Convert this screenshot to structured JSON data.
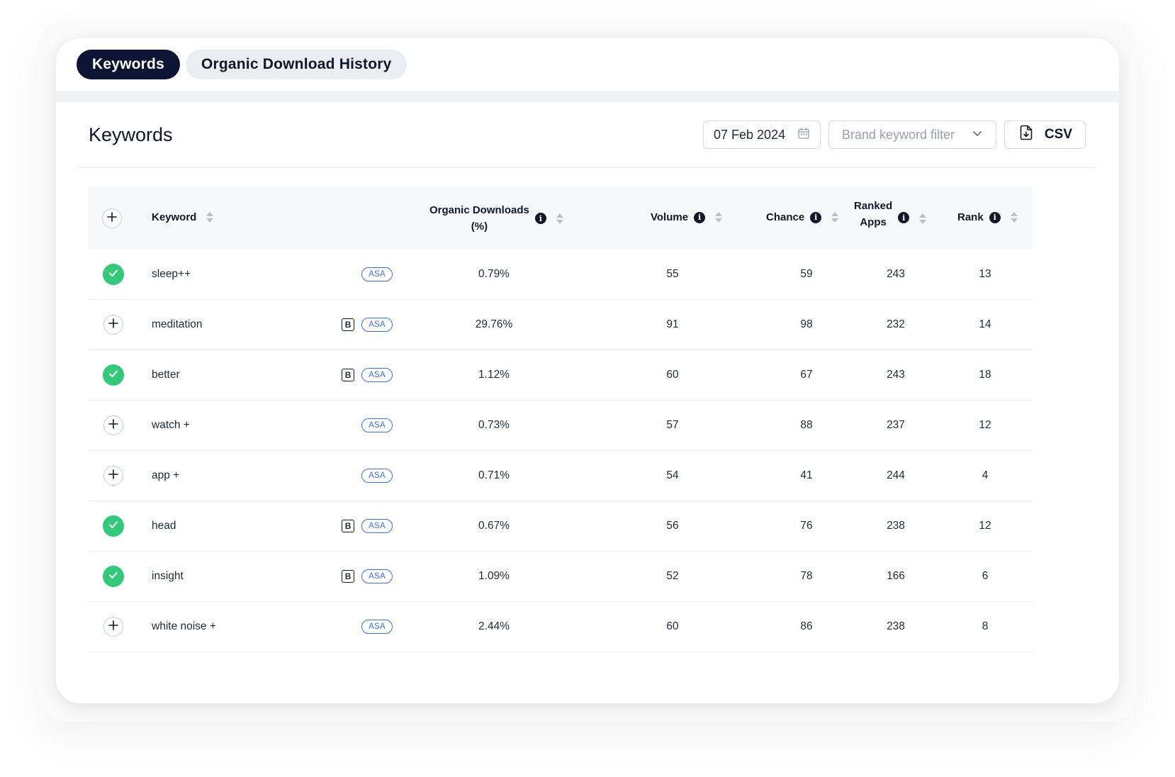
{
  "tabs": [
    {
      "label": "Keywords",
      "active": true
    },
    {
      "label": "Organic Download History",
      "active": false
    }
  ],
  "section": {
    "title": "Keywords"
  },
  "toolbar": {
    "date": "07 Feb 2024",
    "brand_filter_placeholder": "Brand keyword filter",
    "csv_label": "CSV"
  },
  "table": {
    "headers": {
      "keyword": "Keyword",
      "organic_line1": "Organic Downloads",
      "organic_line2": "(%)",
      "volume": "Volume",
      "chance": "Chance",
      "ranked_line1": "Ranked",
      "ranked_line2": "Apps",
      "rank": "Rank"
    },
    "badges": {
      "brand": "B",
      "asa": "ASA"
    },
    "rows": [
      {
        "keyword": "sleep++",
        "added": true,
        "brand": false,
        "organic": "0.79%",
        "volume": "55",
        "chance": "59",
        "ranked_apps": "243",
        "rank": "13"
      },
      {
        "keyword": "meditation",
        "added": false,
        "brand": true,
        "organic": "29.76%",
        "volume": "91",
        "chance": "98",
        "ranked_apps": "232",
        "rank": "14"
      },
      {
        "keyword": "better",
        "added": true,
        "brand": true,
        "organic": "1.12%",
        "volume": "60",
        "chance": "67",
        "ranked_apps": "243",
        "rank": "18"
      },
      {
        "keyword": "watch +",
        "added": false,
        "brand": false,
        "organic": "0.73%",
        "volume": "57",
        "chance": "88",
        "ranked_apps": "237",
        "rank": "12"
      },
      {
        "keyword": "app +",
        "added": false,
        "brand": false,
        "organic": "0.71%",
        "volume": "54",
        "chance": "41",
        "ranked_apps": "244",
        "rank": "4"
      },
      {
        "keyword": "head",
        "added": true,
        "brand": true,
        "organic": "0.67%",
        "volume": "56",
        "chance": "76",
        "ranked_apps": "238",
        "rank": "12"
      },
      {
        "keyword": "insight",
        "added": true,
        "brand": true,
        "organic": "1.09%",
        "volume": "52",
        "chance": "78",
        "ranked_apps": "166",
        "rank": "6"
      },
      {
        "keyword": "white noise +",
        "added": false,
        "brand": false,
        "organic": "2.44%",
        "volume": "60",
        "chance": "86",
        "ranked_apps": "238",
        "rank": "8"
      }
    ]
  },
  "colors": {
    "active_tab": "#0c1533",
    "check": "#34c97a",
    "asa": "#3b6fe6"
  },
  "icons": {
    "date": "calendar-icon",
    "filter": "chevron-down-icon",
    "csv": "file-download-icon",
    "add": "plus-icon",
    "added": "check-icon",
    "info": "info-icon",
    "sort": "sort-icon"
  }
}
